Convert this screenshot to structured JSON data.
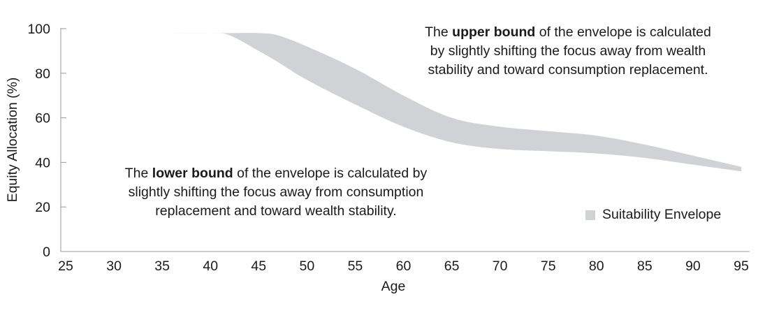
{
  "annotations": {
    "upper": {
      "pre": "The ",
      "bold": "upper bound",
      "line1_rest": " of the envelope is calculated",
      "line2": "by slightly shifting the focus away from wealth",
      "line3": "stability and toward consumption replacement."
    },
    "lower": {
      "pre": "The ",
      "bold": "lower bound",
      "line1_rest": " of the envelope is calculated by",
      "line2": "slightly shifting the focus away from consumption",
      "line3": "replacement and toward wealth stability."
    }
  },
  "legend": {
    "label": "Suitability Envelope"
  },
  "colors": {
    "envelope": "#d0d2d6",
    "axis": "#999999",
    "text": "#1a1a1a"
  },
  "chart_data": {
    "type": "area",
    "title": "",
    "xlabel": "Age",
    "ylabel": "Equity Allocation (%)",
    "xlim": [
      25,
      95
    ],
    "ylim": [
      0,
      100
    ],
    "xticks": [
      25,
      30,
      35,
      40,
      45,
      50,
      55,
      60,
      65,
      70,
      75,
      80,
      85,
      90,
      95
    ],
    "yticks": [
      0,
      20,
      40,
      60,
      80,
      100
    ],
    "grid": false,
    "legend_position": "bottom-right",
    "series": [
      {
        "name": "Suitability Envelope",
        "x": [
          35,
          40,
          42,
          45,
          47,
          50,
          55,
          60,
          65,
          70,
          75,
          80,
          85,
          90,
          95
        ],
        "upper": [
          98,
          98,
          98,
          98,
          97,
          92,
          82,
          70,
          60,
          56,
          54,
          52,
          48,
          43,
          38
        ],
        "lower": [
          98,
          98,
          97,
          90,
          85,
          77,
          66,
          56,
          49,
          46,
          45,
          44,
          42,
          39,
          36
        ]
      }
    ]
  }
}
